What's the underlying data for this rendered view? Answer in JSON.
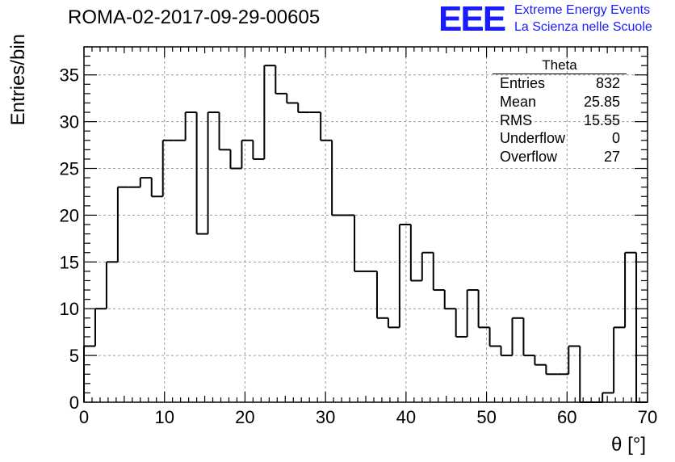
{
  "header": {
    "run_title": "ROMA-02-2017-09-29-00605",
    "logo_text": "EEE",
    "logo_line1": "Extreme Energy Events",
    "logo_line2": "La Scienza nelle Scuole",
    "logo_color": "#1a1aff"
  },
  "stats_box": {
    "title": "Theta",
    "rows": [
      {
        "label": "Entries",
        "value": "832"
      },
      {
        "label": "Mean",
        "value": "25.85"
      },
      {
        "label": "RMS",
        "value": "15.55"
      },
      {
        "label": "Underflow",
        "value": "0"
      },
      {
        "label": "Overflow",
        "value": "27"
      }
    ]
  },
  "chart_data": {
    "type": "bar",
    "style": "step-histogram",
    "xlabel": "θ [°]",
    "ylabel": "Entries/bin",
    "xlim": [
      0,
      70
    ],
    "ylim": [
      0,
      38
    ],
    "bin_width": 1.4,
    "grid": true,
    "xticks": [
      "0",
      "10",
      "20",
      "30",
      "40",
      "50",
      "60",
      "70"
    ],
    "yticks": [
      "0",
      "5",
      "10",
      "15",
      "20",
      "25",
      "30",
      "35"
    ],
    "values": [
      6,
      10,
      15,
      23,
      23,
      24,
      22,
      28,
      28,
      31,
      18,
      31,
      27,
      25,
      28,
      26,
      36,
      33,
      32,
      31,
      31,
      28,
      20,
      20,
      14,
      14,
      9,
      8,
      19,
      13,
      16,
      12,
      10,
      7,
      12,
      8,
      6,
      5,
      9,
      5,
      4,
      3,
      3,
      6,
      0,
      0,
      1,
      8,
      16,
      0
    ]
  }
}
